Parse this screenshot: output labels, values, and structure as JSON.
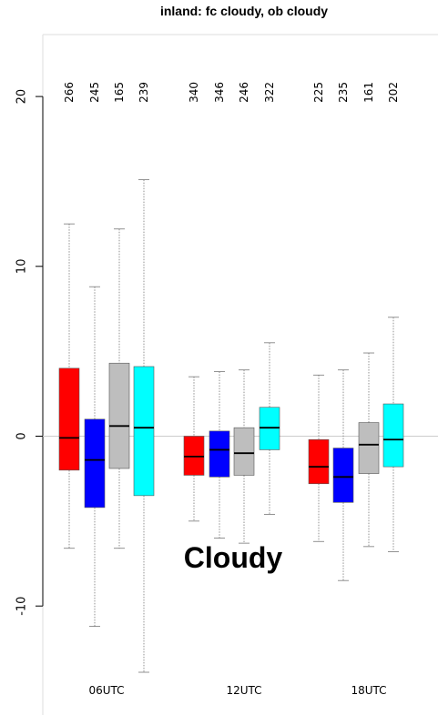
{
  "chart_data": {
    "type": "box",
    "title": "inland: fc cloudy, ob cloudy",
    "annotation": "Cloudy",
    "ylim": [
      -15,
      23.5
    ],
    "yticks": [
      -10,
      0,
      10,
      20
    ],
    "reference_line": 0,
    "grid": false,
    "groups": [
      "06UTC",
      "12UTC",
      "18UTC"
    ],
    "boxes": [
      {
        "group": "06UTC",
        "color": "#ff0000",
        "count": "266",
        "whisker_low": -6.6,
        "q1": -2.0,
        "median": -0.1,
        "q3": 4.0,
        "whisker_high": 12.5
      },
      {
        "group": "06UTC",
        "color": "#0000ff",
        "count": "245",
        "whisker_low": -11.2,
        "q1": -4.2,
        "median": -1.4,
        "q3": 1.0,
        "whisker_high": 8.8
      },
      {
        "group": "06UTC",
        "color": "#bebebe",
        "count": "165",
        "whisker_low": -6.6,
        "q1": -1.9,
        "median": 0.6,
        "q3": 4.3,
        "whisker_high": 12.2
      },
      {
        "group": "06UTC",
        "color": "#00ffff",
        "count": "239",
        "whisker_low": -13.9,
        "q1": -3.5,
        "median": 0.5,
        "q3": 4.1,
        "whisker_high": 15.1
      },
      {
        "group": "12UTC",
        "color": "#ff0000",
        "count": "340",
        "whisker_low": -5.0,
        "q1": -2.3,
        "median": -1.2,
        "q3": 0.0,
        "whisker_high": 3.5
      },
      {
        "group": "12UTC",
        "color": "#0000ff",
        "count": "346",
        "whisker_low": -6.0,
        "q1": -2.4,
        "median": -0.8,
        "q3": 0.3,
        "whisker_high": 3.8
      },
      {
        "group": "12UTC",
        "color": "#bebebe",
        "count": "246",
        "whisker_low": -6.3,
        "q1": -2.3,
        "median": -1.0,
        "q3": 0.5,
        "whisker_high": 3.9
      },
      {
        "group": "12UTC",
        "color": "#00ffff",
        "count": "322",
        "whisker_low": -4.6,
        "q1": -0.8,
        "median": 0.5,
        "q3": 1.7,
        "whisker_high": 5.5
      },
      {
        "group": "18UTC",
        "color": "#ff0000",
        "count": "225",
        "whisker_low": -6.2,
        "q1": -2.8,
        "median": -1.8,
        "q3": -0.2,
        "whisker_high": 3.6
      },
      {
        "group": "18UTC",
        "color": "#0000ff",
        "count": "235",
        "whisker_low": -8.5,
        "q1": -3.9,
        "median": -2.4,
        "q3": -0.7,
        "whisker_high": 3.9
      },
      {
        "group": "18UTC",
        "color": "#bebebe",
        "count": "161",
        "whisker_low": -6.5,
        "q1": -2.2,
        "median": -0.5,
        "q3": 0.8,
        "whisker_high": 4.9
      },
      {
        "group": "18UTC",
        "color": "#00ffff",
        "count": "202",
        "whisker_low": -6.8,
        "q1": -1.8,
        "median": -0.2,
        "q3": 1.9,
        "whisker_high": 7.0
      }
    ]
  }
}
